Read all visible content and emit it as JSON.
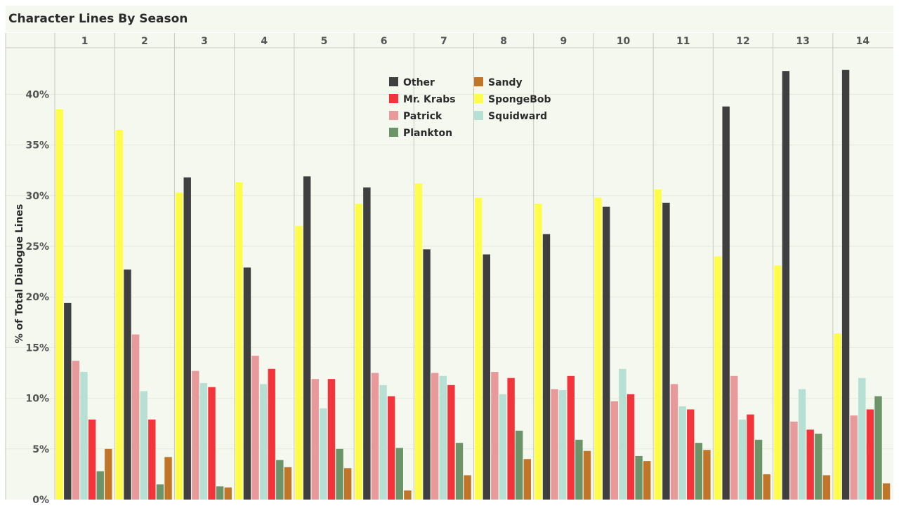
{
  "chart_data": {
    "type": "bar",
    "title": "Character Lines By Season",
    "ylabel": "% of Total Dialogue Lines",
    "xlabel": "",
    "ylim": [
      0,
      45
    ],
    "y_ticks": [
      0,
      5,
      10,
      15,
      20,
      25,
      30,
      35,
      40
    ],
    "y_tick_labels": [
      "0%",
      "5%",
      "10%",
      "15%",
      "20%",
      "25%",
      "30%",
      "35%",
      "40%"
    ],
    "categories": [
      "1",
      "2",
      "3",
      "4",
      "5",
      "6",
      "7",
      "8",
      "9",
      "10",
      "11",
      "12",
      "13",
      "14"
    ],
    "grid": true,
    "legend_position": "top-center",
    "bar_order": [
      "SpongeBob",
      "Other",
      "Patrick",
      "Squidward",
      "Mr. Krabs",
      "Plankton",
      "Sandy"
    ],
    "series": [
      {
        "name": "Other",
        "color": "#3f3f3f",
        "values": [
          19.4,
          22.7,
          31.8,
          22.9,
          31.9,
          30.8,
          24.7,
          24.2,
          26.2,
          28.9,
          29.3,
          38.8,
          42.3,
          42.4
        ]
      },
      {
        "name": "Mr. Krabs",
        "color": "#f4343b",
        "values": [
          7.9,
          7.9,
          11.1,
          12.9,
          11.9,
          10.2,
          11.3,
          12.0,
          12.2,
          10.4,
          8.9,
          8.4,
          6.9,
          8.9
        ]
      },
      {
        "name": "Patrick",
        "color": "#e89a9a",
        "values": [
          13.7,
          16.3,
          12.7,
          14.2,
          11.9,
          12.5,
          12.5,
          12.6,
          10.9,
          9.7,
          11.4,
          12.2,
          7.7,
          8.3
        ]
      },
      {
        "name": "Plankton",
        "color": "#6c9468",
        "values": [
          2.8,
          1.5,
          1.3,
          3.9,
          5.0,
          5.1,
          5.6,
          6.8,
          5.9,
          4.3,
          5.6,
          5.9,
          6.5,
          10.2
        ]
      },
      {
        "name": "Sandy",
        "color": "#c07528",
        "values": [
          5.0,
          4.2,
          1.2,
          3.2,
          3.1,
          0.9,
          2.4,
          4.0,
          4.8,
          3.8,
          4.9,
          2.5,
          2.4,
          1.6
        ]
      },
      {
        "name": "SpongeBob",
        "color": "#fffd4a",
        "values": [
          38.5,
          36.5,
          30.3,
          31.3,
          27.0,
          29.2,
          31.2,
          29.8,
          29.2,
          29.8,
          30.6,
          24.0,
          23.1,
          16.4
        ]
      },
      {
        "name": "Squidward",
        "color": "#b6e0d4",
        "values": [
          12.6,
          10.7,
          11.5,
          11.4,
          9.0,
          11.3,
          12.2,
          10.4,
          10.8,
          12.9,
          9.2,
          7.9,
          10.9,
          12.0
        ]
      }
    ]
  },
  "style": {
    "plot_bg": "#f5f8ef",
    "grid_color": "#e6ebdd",
    "separator_color": "#c6c9c0"
  }
}
